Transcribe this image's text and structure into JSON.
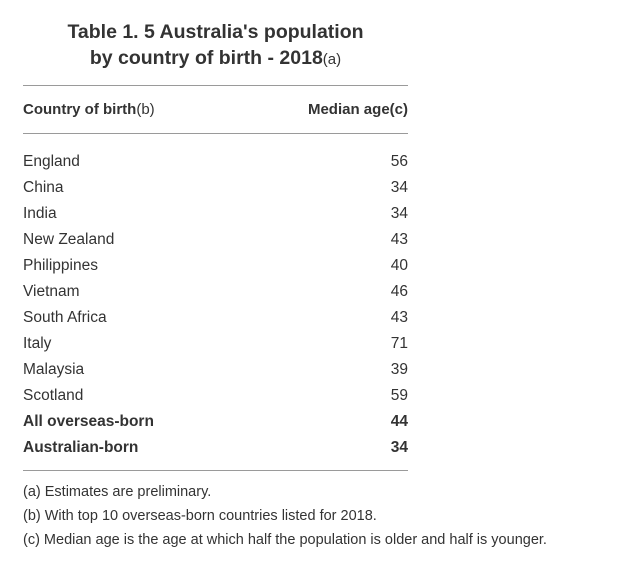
{
  "table": {
    "title_main": "Table 1. 5 Australia's population by country of birth - 2018",
    "title_line1": "Table 1. 5 Australia's population",
    "title_line2": "by country of birth - 2018",
    "title_note": "(a)",
    "columns": [
      {
        "label": "Country of birth",
        "note": "(b)"
      },
      {
        "label": "Median age(c)",
        "note": ""
      }
    ],
    "rows": [
      {
        "country": "England",
        "median_age": "56",
        "bold": false
      },
      {
        "country": "China",
        "median_age": "34",
        "bold": false
      },
      {
        "country": "India",
        "median_age": "34",
        "bold": false
      },
      {
        "country": "New Zealand",
        "median_age": "43",
        "bold": false
      },
      {
        "country": "Philippines",
        "median_age": "40",
        "bold": false
      },
      {
        "country": "Vietnam",
        "median_age": "46",
        "bold": false
      },
      {
        "country": "South Africa",
        "median_age": "43",
        "bold": false
      },
      {
        "country": "Italy",
        "median_age": "71",
        "bold": false
      },
      {
        "country": "Malaysia",
        "median_age": "39",
        "bold": false
      },
      {
        "country": "Scotland",
        "median_age": "59",
        "bold": false
      },
      {
        "country": "All overseas-born",
        "median_age": "44",
        "bold": true
      },
      {
        "country": "Australian-born",
        "median_age": "34",
        "bold": true
      }
    ],
    "footnotes": [
      "(a) Estimates are preliminary.",
      "(b) With top 10 overseas-born countries listed for 2018.",
      "(c) Median age is the age at which half the population is older and half is younger."
    ]
  },
  "chart_data": {
    "type": "table",
    "title": "Table 1. 5 Australia's population by country of birth - 2018(a)",
    "columns": [
      "Country of birth(b)",
      "Median age(c)"
    ],
    "categories": [
      "England",
      "China",
      "India",
      "New Zealand",
      "Philippines",
      "Vietnam",
      "South Africa",
      "Italy",
      "Malaysia",
      "Scotland",
      "All overseas-born",
      "Australian-born"
    ],
    "values": [
      56,
      34,
      34,
      43,
      40,
      46,
      43,
      71,
      39,
      59,
      44,
      34
    ],
    "footnotes": [
      "(a) Estimates are preliminary.",
      "(b) With top 10 overseas-born countries listed for 2018.",
      "(c) Median age is the age at which half the population is older and half is younger."
    ]
  }
}
